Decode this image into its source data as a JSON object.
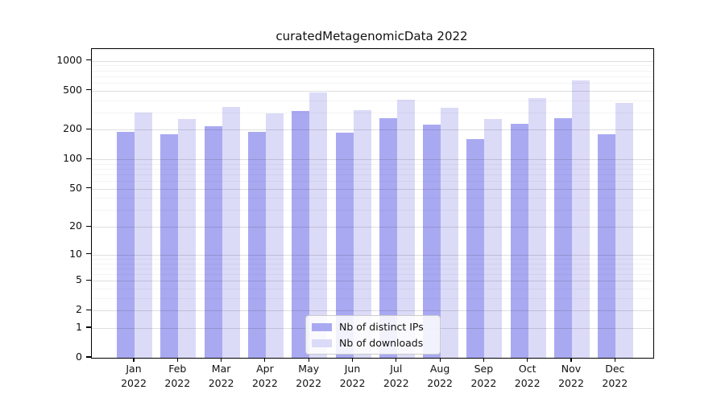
{
  "chart_data": {
    "type": "bar",
    "title": "curatedMetagenomicData 2022",
    "categories": [
      "Jan 2022",
      "Feb 2022",
      "Mar 2022",
      "Apr 2022",
      "May 2022",
      "Jun 2022",
      "Jul 2022",
      "Aug 2022",
      "Sep 2022",
      "Oct 2022",
      "Nov 2022",
      "Dec 2022"
    ],
    "x_tick_months": [
      "Jan",
      "Feb",
      "Mar",
      "Apr",
      "May",
      "Jun",
      "Jul",
      "Aug",
      "Sep",
      "Oct",
      "Nov",
      "Dec"
    ],
    "x_tick_year": "2022",
    "series": [
      {
        "name": "Nb of distinct IPs",
        "color": "#a9a9f2",
        "values": [
          190,
          179,
          219,
          192,
          313,
          187,
          264,
          226,
          160,
          230,
          264,
          180
        ]
      },
      {
        "name": "Nb of downloads",
        "color": "#dbdbf8",
        "values": [
          298,
          259,
          341,
          294,
          478,
          316,
          402,
          333,
          258,
          422,
          637,
          375
        ]
      }
    ],
    "yscale": "log1p",
    "yticks": [
      0,
      1,
      2,
      5,
      10,
      20,
      50,
      100,
      200,
      500,
      1000
    ],
    "minor_yticks": [
      3,
      4,
      6,
      7,
      8,
      9,
      30,
      40,
      60,
      70,
      80,
      90,
      300,
      400,
      600,
      700,
      800,
      900
    ],
    "ylim": [
      0,
      1316
    ],
    "grid": true,
    "legend_position": "lower center"
  },
  "colors": {
    "bar_distinct_ips": "#a9a9f2",
    "bar_downloads": "#dbdbf8",
    "major_grid": "#dddddd",
    "minor_grid": "#f2f2f2",
    "axis": "#000000"
  }
}
